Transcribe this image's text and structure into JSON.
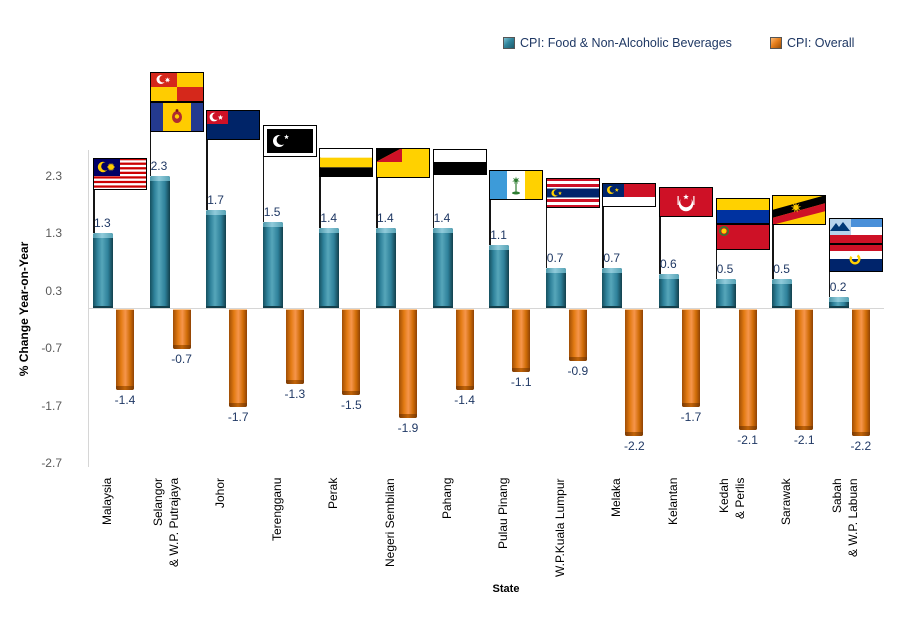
{
  "legend": {
    "items": [
      {
        "label": "CPI: Food & Non-Alcoholic Beverages",
        "color_main": "#31859C",
        "color_light": "#7CC0D0",
        "color_dark": "#1D5A6C"
      },
      {
        "label": "CPI: Overall",
        "color_main": "#E8801D",
        "color_light": "#F9B977",
        "color_dark": "#9C4F07"
      }
    ],
    "text_color": "#1F3864"
  },
  "chart_data": {
    "type": "bar",
    "title": "",
    "xlabel": "State",
    "ylabel": "% Change Year-on-Year",
    "yticks": [
      "2.3",
      "1.3",
      "0.3",
      "-0.7",
      "-1.7",
      "-2.7"
    ],
    "ylim": [
      -2.7,
      2.8
    ],
    "grid": false,
    "legend_position": "top-right",
    "axis_line_color": "#D6D6D6",
    "tick_label_color": "#595959",
    "data_label_color": "#1F3864",
    "categories": [
      [
        "Malaysia"
      ],
      [
        "Selangor",
        "& W.P. Putrajaya"
      ],
      [
        "Johor"
      ],
      [
        "Terengganu"
      ],
      [
        "Perak"
      ],
      [
        "Negeri Sembilan"
      ],
      [
        "Pahang"
      ],
      [
        "Pulau Pinang"
      ],
      [
        "W.P.Kuala Lumpur"
      ],
      [
        "Melaka"
      ],
      [
        "Kelantan"
      ],
      [
        "Kedah",
        "& Perlis"
      ],
      [
        "Sarawak"
      ],
      [
        "Sabah",
        "& W.P. Labuan"
      ]
    ],
    "series": [
      {
        "name": "CPI: Food & Non-Alcoholic Beverages",
        "color": "#31859C",
        "values": [
          1.3,
          2.3,
          1.7,
          1.5,
          1.4,
          1.4,
          1.4,
          1.1,
          0.7,
          0.7,
          0.6,
          0.5,
          0.5,
          0.2
        ]
      },
      {
        "name": "CPI: Overall",
        "color": "#E8801D",
        "values": [
          -1.4,
          -0.7,
          -1.7,
          -1.3,
          -1.5,
          -1.9,
          -1.4,
          -1.1,
          -0.9,
          -2.2,
          -1.7,
          -2.1,
          -2.1,
          -2.2
        ]
      }
    ],
    "flags": [
      [
        "malaysia"
      ],
      [
        "selangor",
        "putrajaya"
      ],
      [
        "johor"
      ],
      [
        "terengganu"
      ],
      [
        "perak"
      ],
      [
        "negeri-sembilan"
      ],
      [
        "pahang"
      ],
      [
        "pulau-pinang"
      ],
      [
        "kuala-lumpur"
      ],
      [
        "melaka"
      ],
      [
        "kelantan"
      ],
      [
        "perlis",
        "kedah"
      ],
      [
        "sarawak"
      ],
      [
        "sabah",
        "labuan"
      ]
    ],
    "flag_tops": [
      158,
      72,
      110,
      125,
      148,
      148,
      149,
      170,
      178,
      183,
      187,
      198,
      195,
      218
    ]
  }
}
